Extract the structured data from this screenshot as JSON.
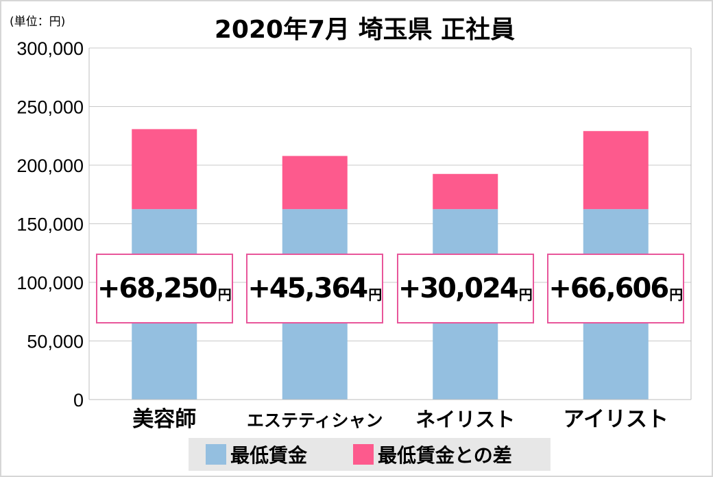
{
  "chart_data": {
    "type": "bar",
    "stacked": true,
    "title": "2020年7月 埼玉県 正社員",
    "unit_label": "(単位：円)",
    "categories": [
      "美容師",
      "エステティシャン",
      "ネイリスト",
      "アイリスト"
    ],
    "series": [
      {
        "name": "最低賃金",
        "color": "#94bfe0",
        "values": [
          162500,
          162500,
          162500,
          162500
        ]
      },
      {
        "name": "最低賃金との差",
        "color": "#fd5a8d",
        "values": [
          68250,
          45364,
          30024,
          66606
        ]
      }
    ],
    "ylim": [
      0,
      300000
    ],
    "yticks": [
      0,
      50000,
      100000,
      150000,
      200000,
      250000,
      300000
    ],
    "ytick_labels": [
      "0",
      "50,000",
      "100,000",
      "150,000",
      "200,000",
      "250,000",
      "300,000"
    ],
    "grid": true,
    "legend_position": "bottom",
    "annotations": [
      {
        "text": "+68,250",
        "unit": "円"
      },
      {
        "text": "+45,364",
        "unit": "円"
      },
      {
        "text": "+30,024",
        "unit": "円"
      },
      {
        "text": "+66,606",
        "unit": "円"
      }
    ]
  }
}
